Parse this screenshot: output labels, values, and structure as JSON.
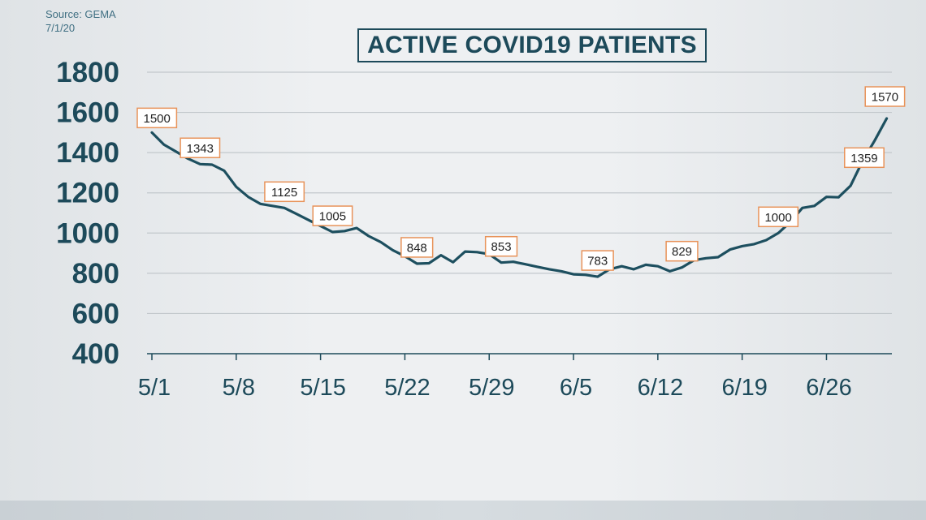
{
  "source": "Source: GEMA",
  "date": "7/1/20",
  "colors": {
    "line": "#1d4f5f",
    "axis_text": "#1d4a5a",
    "label_border": "#e8935a",
    "grid": "#c2c8cc"
  },
  "chart_data": {
    "type": "line",
    "title": "ACTIVE COVID19 PATIENTS",
    "xlabel": "",
    "ylabel": "",
    "ylim": [
      400,
      1800
    ],
    "yticks": [
      400,
      600,
      800,
      1000,
      1200,
      1400,
      1600,
      1800
    ],
    "x_start": "5/1",
    "xtick_labels": [
      "5/1",
      "5/8",
      "5/15",
      "5/22",
      "5/29",
      "6/5",
      "6/12",
      "6/19",
      "6/26"
    ],
    "grid": "horizontal",
    "x": [
      "5/1",
      "5/2",
      "5/3",
      "5/4",
      "5/5",
      "5/6",
      "5/7",
      "5/8",
      "5/9",
      "5/10",
      "5/11",
      "5/12",
      "5/13",
      "5/14",
      "5/15",
      "5/16",
      "5/17",
      "5/18",
      "5/19",
      "5/20",
      "5/21",
      "5/22",
      "5/23",
      "5/24",
      "5/25",
      "5/26",
      "5/27",
      "5/28",
      "5/29",
      "5/30",
      "5/31",
      "6/1",
      "6/2",
      "6/3",
      "6/4",
      "6/5",
      "6/6",
      "6/7",
      "6/8",
      "6/9",
      "6/10",
      "6/11",
      "6/12",
      "6/13",
      "6/14",
      "6/15",
      "6/16",
      "6/17",
      "6/18",
      "6/19",
      "6/20",
      "6/21",
      "6/22",
      "6/23",
      "6/24",
      "6/25",
      "6/26",
      "6/27",
      "6/28",
      "6/29",
      "6/30",
      "7/1"
    ],
    "series": [
      {
        "name": "",
        "values": [
          1500,
          1440,
          1405,
          1370,
          1343,
          1340,
          1310,
          1230,
          1180,
          1145,
          1135,
          1125,
          1095,
          1065,
          1035,
          1005,
          1010,
          1025,
          985,
          955,
          915,
          885,
          848,
          850,
          890,
          855,
          908,
          905,
          895,
          853,
          857,
          845,
          832,
          820,
          810,
          795,
          792,
          783,
          820,
          835,
          820,
          842,
          835,
          810,
          829,
          865,
          875,
          880,
          918,
          935,
          945,
          965,
          1000,
          1055,
          1125,
          1135,
          1180,
          1178,
          1235,
          1359,
          1460,
          1570
        ]
      }
    ],
    "data_labels": [
      {
        "date": "5/1",
        "value": 1500,
        "text": "1500"
      },
      {
        "date": "5/5",
        "value": 1343,
        "text": "1343"
      },
      {
        "date": "5/12",
        "value": 1125,
        "text": "1125"
      },
      {
        "date": "5/16",
        "value": 1005,
        "text": "1005"
      },
      {
        "date": "5/23",
        "value": 848,
        "text": "848"
      },
      {
        "date": "5/30",
        "value": 853,
        "text": "853"
      },
      {
        "date": "6/7",
        "value": 783,
        "text": "783"
      },
      {
        "date": "6/14",
        "value": 829,
        "text": "829"
      },
      {
        "date": "6/22",
        "value": 1000,
        "text": "1000"
      },
      {
        "date": "6/29",
        "value": 1359,
        "text": "1359"
      },
      {
        "date": "7/1",
        "value": 1570,
        "text": "1570"
      }
    ]
  }
}
